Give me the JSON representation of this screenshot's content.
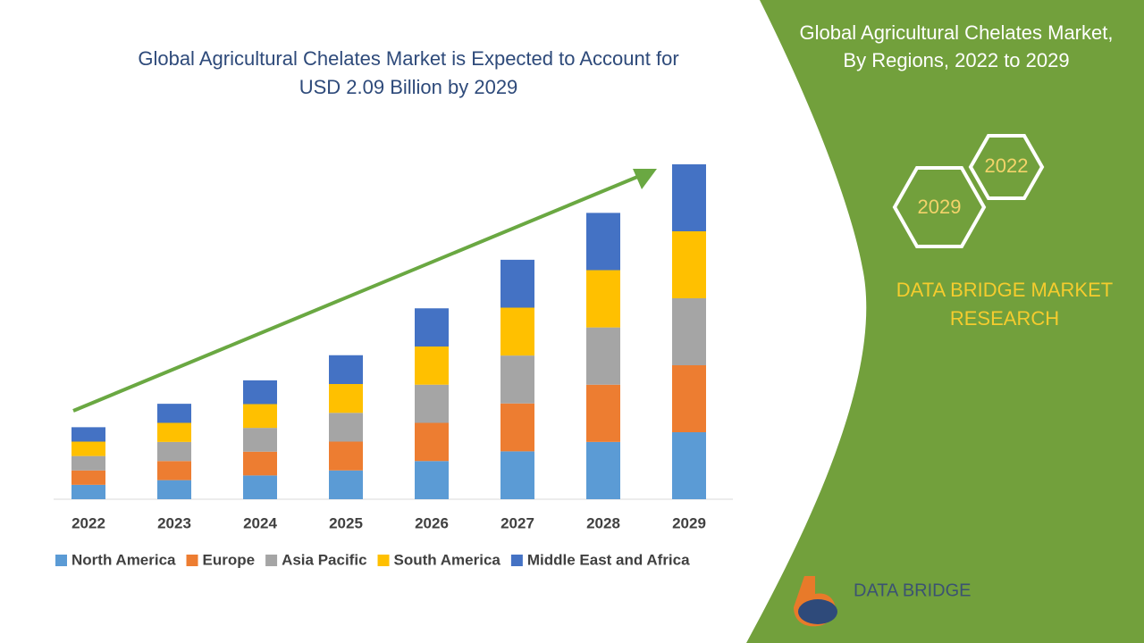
{
  "chart_data": {
    "type": "stacked_bar",
    "title": [
      "Global Agricultural Chelates Market is Expected to Account for",
      "USD 2.09 Billion by 2029"
    ],
    "categories": [
      "2022",
      "2023",
      "2024",
      "2025",
      "2026",
      "2027",
      "2028",
      "2029"
    ],
    "series": [
      {
        "name": "North America",
        "color": "#5b9bd5",
        "values": [
          4.3,
          5.7,
          7.1,
          8.6,
          11.4,
          14.3,
          17.1,
          20
        ]
      },
      {
        "name": "Europe",
        "color": "#ed7d31",
        "values": [
          4.3,
          5.7,
          7.1,
          8.6,
          11.4,
          14.3,
          17.1,
          20
        ]
      },
      {
        "name": "Asia Pacific",
        "color": "#a5a5a5",
        "values": [
          4.3,
          5.7,
          7.1,
          8.6,
          11.4,
          14.3,
          17.1,
          20
        ]
      },
      {
        "name": "South America",
        "color": "#ffc000",
        "values": [
          4.3,
          5.7,
          7.1,
          8.6,
          11.4,
          14.3,
          17.1,
          20
        ]
      },
      {
        "name": "Middle East and Africa",
        "color": "#4472c4",
        "values": [
          4.3,
          5.7,
          7.1,
          8.6,
          11.4,
          14.3,
          17.1,
          20
        ]
      }
    ],
    "ylim": [
      0,
      100
    ]
  },
  "panel": {
    "title": [
      "Global Agricultural Chelates Market,",
      "By Regions, 2022 to 2029"
    ],
    "hexagons": [
      "2022",
      "2029"
    ],
    "brand": [
      "DATA BRIDGE MARKET",
      "RESEARCH"
    ],
    "logo_text": "DATA BRIDGE"
  }
}
